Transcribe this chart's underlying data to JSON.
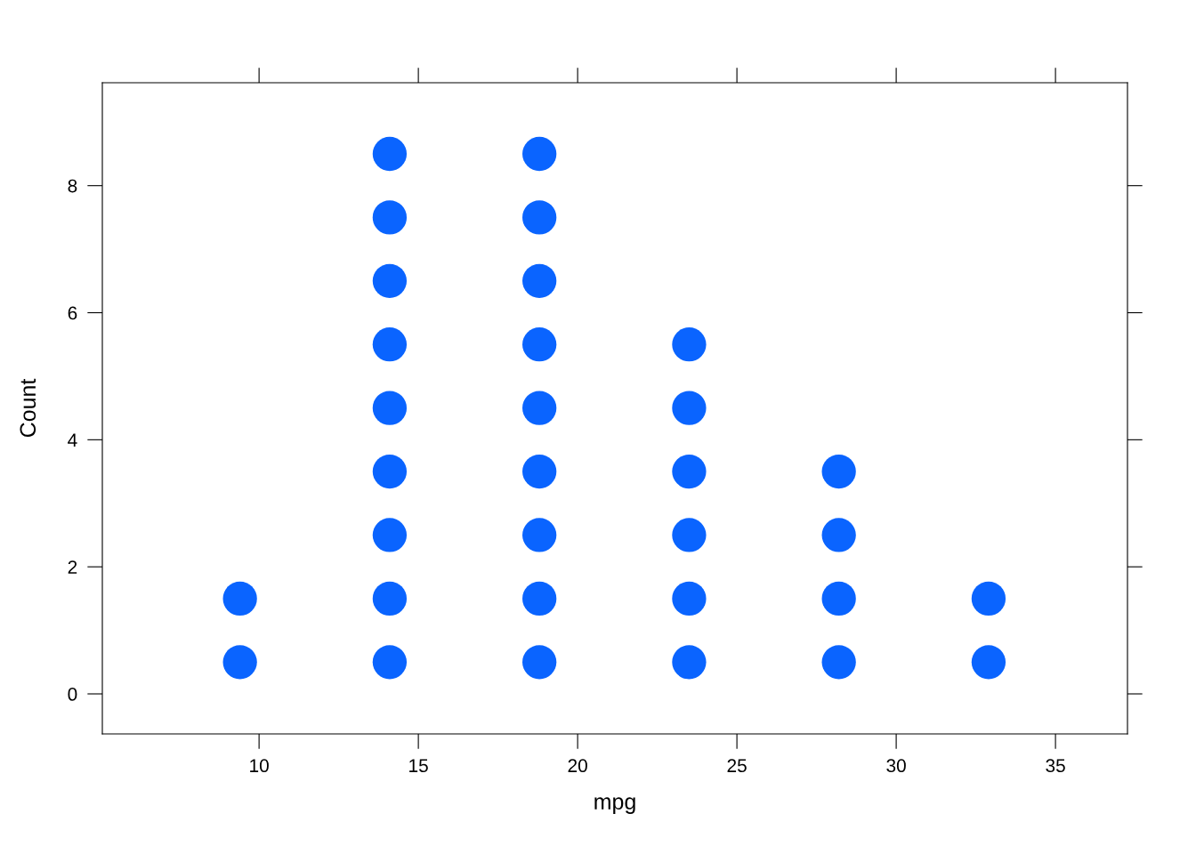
{
  "chart_data": {
    "type": "scatter",
    "xlabel": "mpg",
    "ylabel": "Count",
    "x": [
      9.4,
      9.4,
      14.1,
      14.1,
      14.1,
      14.1,
      14.1,
      14.1,
      14.1,
      14.1,
      14.1,
      18.8,
      18.8,
      18.8,
      18.8,
      18.8,
      18.8,
      18.8,
      18.8,
      18.8,
      23.5,
      23.5,
      23.5,
      23.5,
      23.5,
      23.5,
      28.2,
      28.2,
      28.2,
      28.2,
      32.9,
      32.9
    ],
    "series": [
      {
        "color": "#0a64ff",
        "values": [
          0.5,
          1.5,
          0.5,
          1.5,
          2.5,
          3.5,
          4.5,
          5.5,
          6.5,
          7.5,
          8.5,
          0.5,
          1.5,
          2.5,
          3.5,
          4.5,
          5.5,
          6.5,
          7.5,
          8.5,
          0.5,
          1.5,
          2.5,
          3.5,
          4.5,
          5.5,
          0.5,
          1.5,
          2.5,
          3.5,
          0.5,
          1.5
        ]
      }
    ],
    "xlim": [
      5.08,
      37.26
    ],
    "ylim": [
      -0.63,
      9.62
    ],
    "xticks": [
      10,
      15,
      20,
      25,
      30,
      35
    ],
    "yticks": [
      0,
      2,
      4,
      6,
      8
    ],
    "marker": "circle",
    "grid": false,
    "legend": false
  }
}
